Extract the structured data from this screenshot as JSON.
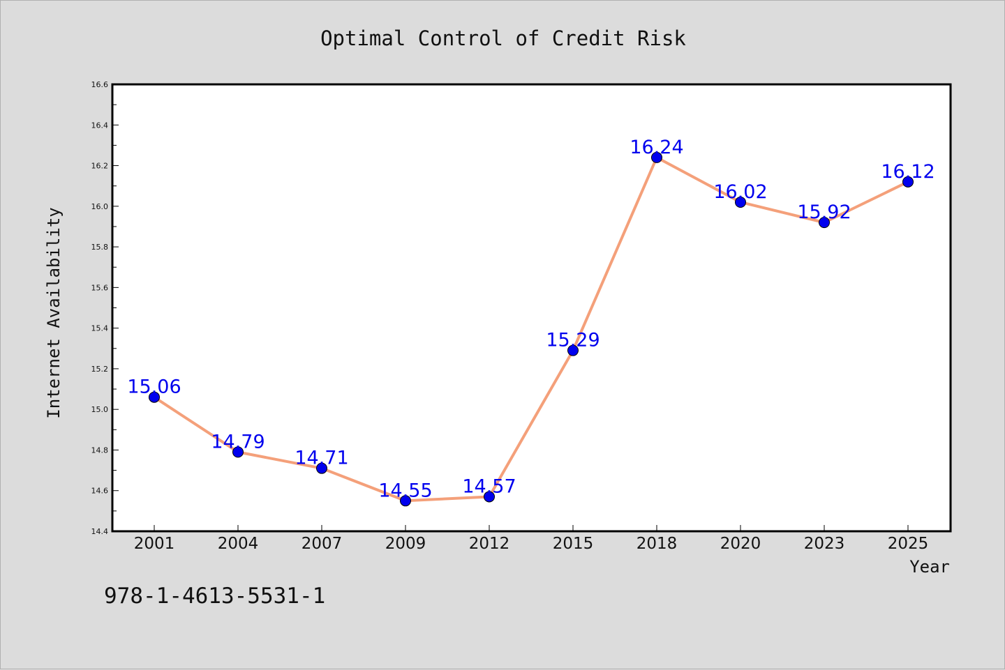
{
  "chart_data": {
    "type": "line",
    "title": "Optimal Control of Credit Risk",
    "xlabel": "Year",
    "ylabel": "Internet Availability",
    "categories": [
      "2001",
      "2004",
      "2007",
      "2009",
      "2012",
      "2015",
      "2018",
      "2020",
      "2023",
      "2025"
    ],
    "series": [
      {
        "values": [
          15.06,
          14.79,
          14.71,
          14.55,
          14.57,
          15.29,
          16.24,
          16.02,
          15.92,
          16.12
        ]
      }
    ],
    "data_labels": [
      "15.06",
      "14.79",
      "14.71",
      "14.55",
      "14.57",
      "15.29",
      "16.24",
      "16.02",
      "15.92",
      "16.12"
    ],
    "ylim": [
      14.4,
      16.6
    ],
    "yticks": [
      "14.4",
      "14.6",
      "14.8",
      "15.0",
      "15.2",
      "15.4",
      "15.6",
      "15.8",
      "16.0",
      "16.2",
      "16.4",
      "16.6"
    ],
    "grid": false,
    "colors": {
      "line": "#f4a07a",
      "marker": "#0000ee",
      "label": "#0000ee",
      "background": "#dcdcdc",
      "plot_area": "#ffffff"
    }
  },
  "footer": {
    "isbn": "978-1-4613-5531-1"
  }
}
